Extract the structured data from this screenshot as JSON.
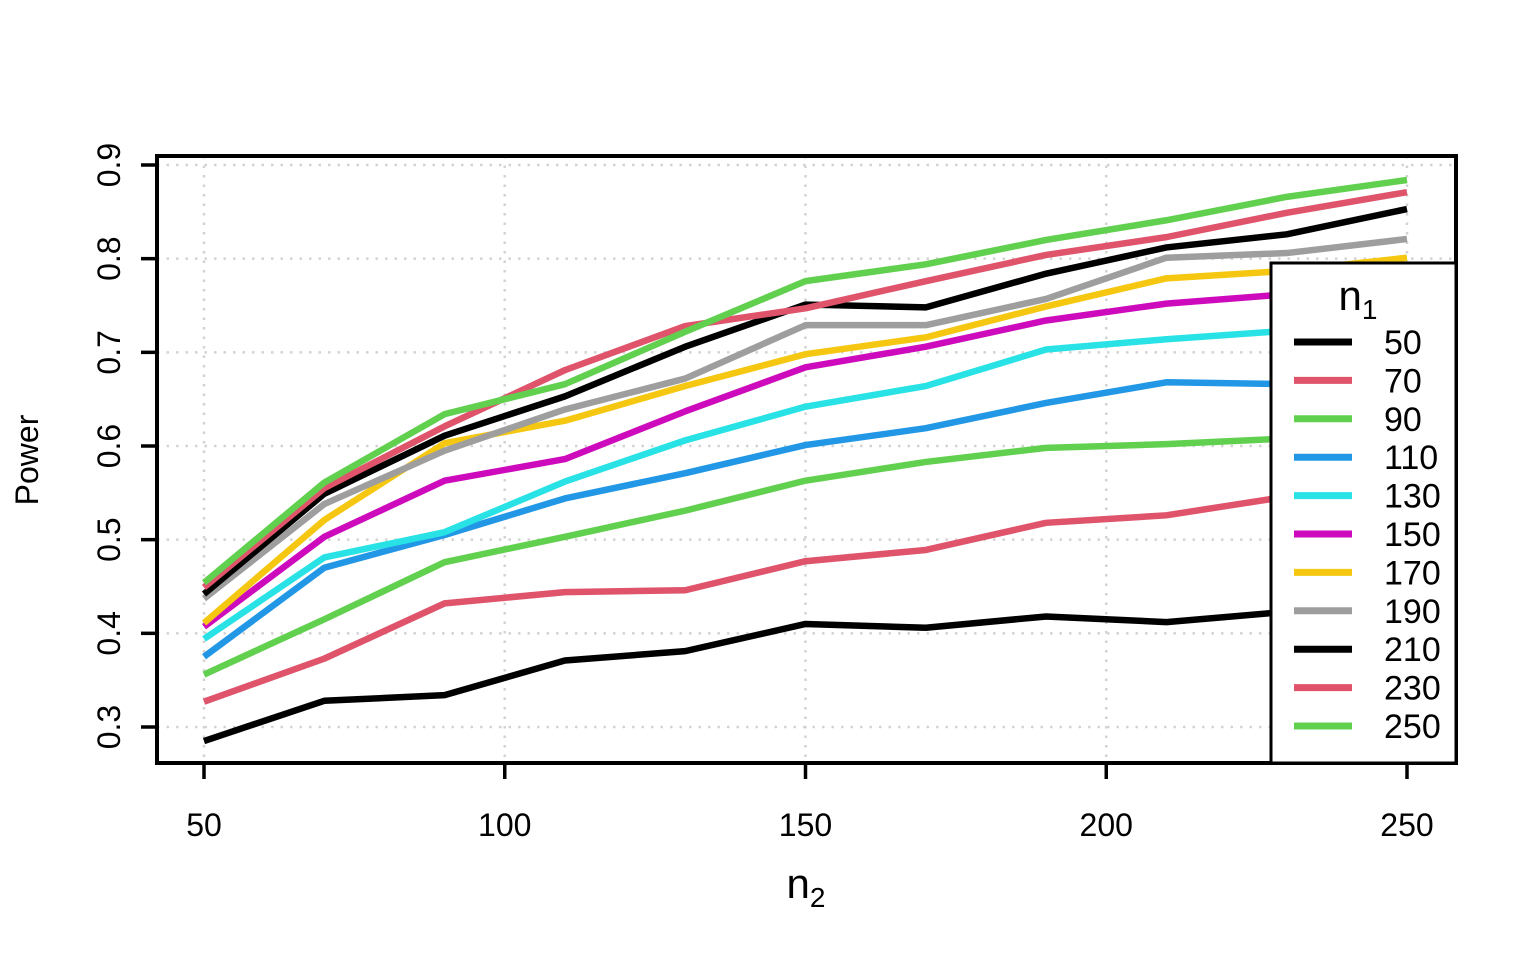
{
  "chart_data": {
    "type": "line",
    "title": "",
    "xlabel_base": "n",
    "xlabel_sub": "2",
    "ylabel": "Power",
    "grid": true,
    "xlim": [
      50,
      250
    ],
    "ylim": [
      0.3,
      0.9
    ],
    "xticks": [
      50,
      100,
      150,
      200,
      250
    ],
    "ytick_labels": [
      "0.3",
      "0.4",
      "0.5",
      "0.6",
      "0.7",
      "0.8",
      "0.9"
    ],
    "legend": {
      "title_base": "n",
      "title_sub": "1",
      "position": "inside-right"
    },
    "x": [
      50,
      70,
      90,
      110,
      130,
      150,
      170,
      190,
      210,
      230,
      250
    ],
    "series": [
      {
        "name": "50",
        "color": "#000000",
        "values": [
          0.285,
          0.328,
          0.334,
          0.371,
          0.381,
          0.41,
          0.406,
          0.418,
          0.412,
          0.423,
          0.428
        ]
      },
      {
        "name": "70",
        "color": "#DF536B",
        "values": [
          0.327,
          0.373,
          0.432,
          0.444,
          0.446,
          0.477,
          0.489,
          0.518,
          0.526,
          0.546,
          0.557
        ]
      },
      {
        "name": "90",
        "color": "#61D04F",
        "values": [
          0.356,
          0.415,
          0.476,
          0.503,
          0.531,
          0.563,
          0.583,
          0.598,
          0.602,
          0.608,
          0.613
        ]
      },
      {
        "name": "110",
        "color": "#2297E6",
        "values": [
          0.375,
          0.47,
          0.505,
          0.544,
          0.571,
          0.601,
          0.619,
          0.646,
          0.668,
          0.666,
          0.667
        ]
      },
      {
        "name": "130",
        "color": "#28E2E5",
        "values": [
          0.394,
          0.481,
          0.508,
          0.562,
          0.606,
          0.642,
          0.664,
          0.703,
          0.714,
          0.723,
          0.732
        ]
      },
      {
        "name": "150",
        "color": "#CD0BBC",
        "values": [
          0.407,
          0.503,
          0.563,
          0.586,
          0.637,
          0.684,
          0.706,
          0.734,
          0.752,
          0.762,
          0.771
        ]
      },
      {
        "name": "170",
        "color": "#F5C710",
        "values": [
          0.411,
          0.521,
          0.603,
          0.627,
          0.664,
          0.698,
          0.716,
          0.749,
          0.779,
          0.787,
          0.801
        ]
      },
      {
        "name": "190",
        "color": "#9E9E9E",
        "values": [
          0.437,
          0.538,
          0.595,
          0.639,
          0.672,
          0.729,
          0.729,
          0.757,
          0.801,
          0.806,
          0.821
        ]
      },
      {
        "name": "210",
        "color": "#000000",
        "values": [
          0.442,
          0.549,
          0.611,
          0.653,
          0.706,
          0.751,
          0.748,
          0.784,
          0.812,
          0.826,
          0.853
        ]
      },
      {
        "name": "230",
        "color": "#DF536B",
        "values": [
          0.449,
          0.555,
          0.621,
          0.681,
          0.728,
          0.747,
          0.776,
          0.804,
          0.823,
          0.849,
          0.871
        ]
      },
      {
        "name": "250",
        "color": "#61D04F",
        "values": [
          0.454,
          0.561,
          0.634,
          0.666,
          0.722,
          0.776,
          0.794,
          0.82,
          0.841,
          0.866,
          0.884
        ]
      }
    ]
  },
  "colors": {
    "background": "#FFFFFF",
    "grid": "#D3D3D3",
    "axis": "#000000",
    "legend_background": "#FFFFFF"
  }
}
